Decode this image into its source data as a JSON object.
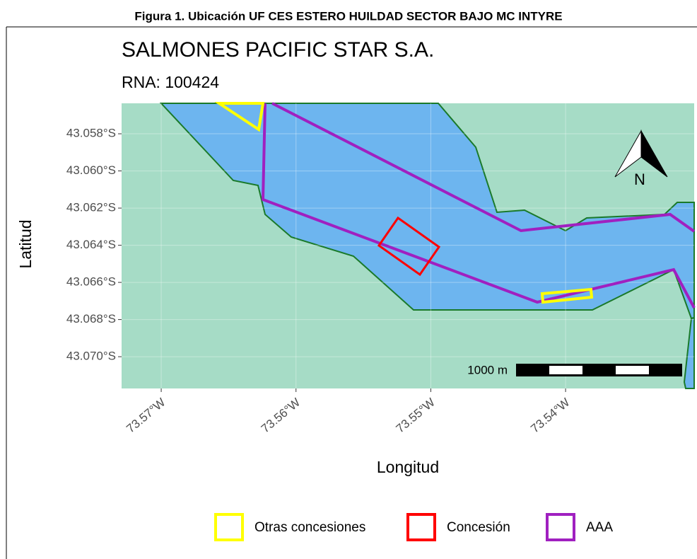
{
  "chart_data": {
    "type": "map",
    "caption": "Figura 1. Ubicación UF CES ESTERO HUILDAD SECTOR BAJO MC INTYRE",
    "title": "SALMONES PACIFIC STAR S.A.",
    "subtitle": "RNA: 100424",
    "x_label": "Longitud",
    "y_label": "Latitud",
    "xlim": [
      -73.57294,
      -73.53046
    ],
    "ylim": [
      -43.07171,
      -43.05636
    ],
    "xticks": [
      {
        "value": -73.57,
        "label": "73.57°W"
      },
      {
        "value": -73.56,
        "label": "73.56°W"
      },
      {
        "value": -73.55,
        "label": "73.55°W"
      },
      {
        "value": -73.54,
        "label": "73.54°W"
      }
    ],
    "yticks": [
      {
        "value": -43.058,
        "label": "43.058°S"
      },
      {
        "value": -43.06,
        "label": "43.060°S"
      },
      {
        "value": -43.062,
        "label": "43.062°S"
      },
      {
        "value": -43.064,
        "label": "43.064°S"
      },
      {
        "value": -43.066,
        "label": "43.066°S"
      },
      {
        "value": -43.068,
        "label": "43.068°S"
      },
      {
        "value": -43.07,
        "label": "43.070°S"
      }
    ],
    "grid": true,
    "north_label": "N",
    "scale_label": "1000 m",
    "legend": [
      {
        "name": "Otras concesiones",
        "color": "#ffff00"
      },
      {
        "name": "Concesión",
        "color": "#ff0000"
      },
      {
        "name": "AAA",
        "color": "#a020c0"
      }
    ]
  }
}
